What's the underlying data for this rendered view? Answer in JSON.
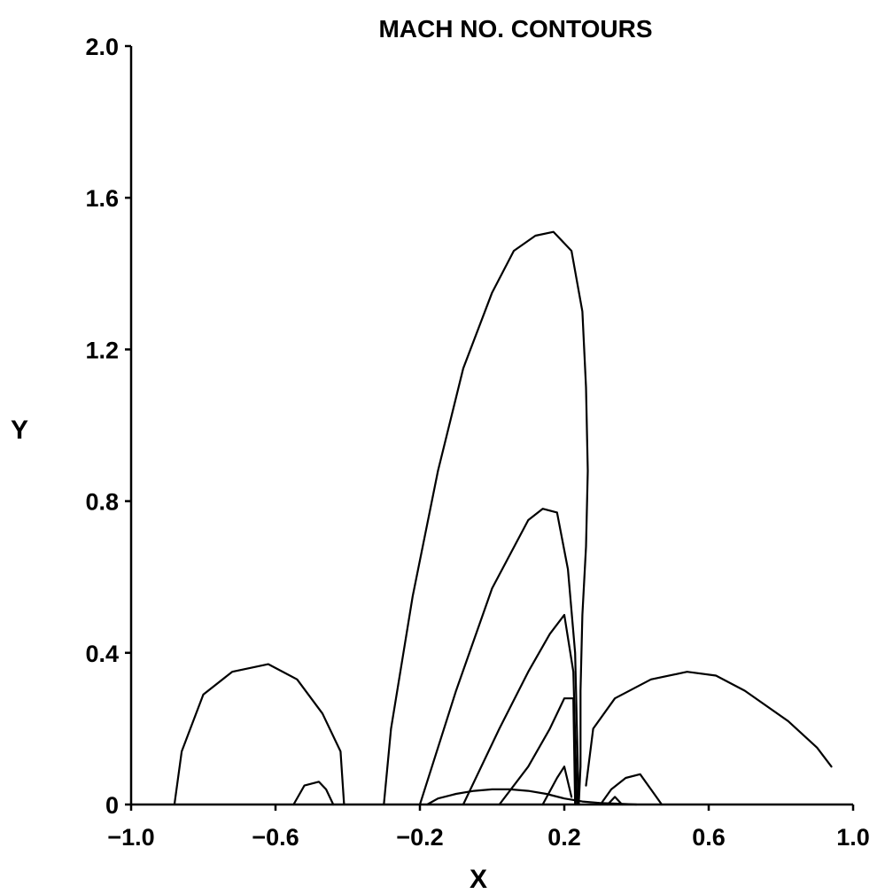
{
  "chart_data": {
    "type": "line",
    "title": "MACH NO. CONTOURS",
    "xlabel": "X",
    "ylabel": "Y",
    "xlim": [
      -1.0,
      1.0
    ],
    "ylim": [
      0,
      2.0
    ],
    "x_ticks": [
      -1.0,
      -0.6,
      -0.2,
      0.2,
      0.6,
      1.0
    ],
    "x_tick_labels": [
      "−1.0",
      "−0.6",
      "−0.2",
      "0.2",
      "0.6",
      "1.0"
    ],
    "y_ticks": [
      0,
      0.4,
      0.8,
      1.2,
      1.6,
      2.0
    ],
    "y_tick_labels": [
      "0",
      "0.4",
      "0.8",
      "1.2",
      "1.6",
      "2.0"
    ],
    "grid": false,
    "series": [
      {
        "x": [
          -0.18,
          -0.15,
          -0.1,
          -0.05,
          0.0,
          0.05,
          0.1,
          0.15,
          0.2,
          0.25,
          0.3,
          0.35,
          0.4
        ],
        "y": [
          0.0,
          0.016,
          0.028,
          0.036,
          0.04,
          0.04,
          0.036,
          0.028,
          0.016,
          0.008,
          0.004,
          0.002,
          0.0
        ]
      },
      {
        "x": [
          -0.88,
          -0.86,
          -0.8,
          -0.72,
          -0.62,
          -0.54,
          -0.47,
          -0.42,
          -0.41
        ],
        "y": [
          0.0,
          0.14,
          0.29,
          0.35,
          0.37,
          0.33,
          0.24,
          0.14,
          0.0
        ]
      },
      {
        "x": [
          -0.55,
          -0.52,
          -0.48,
          -0.46,
          -0.44
        ],
        "y": [
          0.0,
          0.05,
          0.06,
          0.04,
          0.0
        ]
      },
      {
        "x": [
          -0.3,
          -0.28,
          -0.22,
          -0.15,
          -0.08,
          0.0,
          0.06,
          0.12,
          0.17,
          0.22,
          0.25,
          0.26,
          0.265,
          0.26,
          0.25,
          0.245,
          0.245,
          0.24
        ],
        "y": [
          0.0,
          0.2,
          0.55,
          0.88,
          1.15,
          1.35,
          1.46,
          1.5,
          1.51,
          1.46,
          1.3,
          1.1,
          0.88,
          0.68,
          0.5,
          0.3,
          0.1,
          0.0
        ]
      },
      {
        "x": [
          -0.2,
          -0.1,
          0.0,
          0.1,
          0.14,
          0.18,
          0.21,
          0.23,
          0.24
        ],
        "y": [
          0.0,
          0.3,
          0.57,
          0.75,
          0.78,
          0.77,
          0.62,
          0.4,
          0.0
        ]
      },
      {
        "x": [
          -0.08,
          0.02,
          0.1,
          0.16,
          0.2,
          0.225,
          0.235
        ],
        "y": [
          0.0,
          0.2,
          0.35,
          0.45,
          0.5,
          0.35,
          0.0
        ]
      },
      {
        "x": [
          0.02,
          0.1,
          0.16,
          0.2,
          0.225,
          0.23
        ],
        "y": [
          0.0,
          0.1,
          0.2,
          0.28,
          0.28,
          0.0
        ]
      },
      {
        "x": [
          0.14,
          0.18,
          0.2,
          0.22
        ],
        "y": [
          0.0,
          0.07,
          0.1,
          0.02
        ]
      },
      {
        "x": [
          0.26,
          0.28,
          0.34,
          0.44,
          0.54,
          0.62,
          0.7,
          0.82,
          0.9,
          0.94
        ],
        "y": [
          0.05,
          0.2,
          0.28,
          0.33,
          0.35,
          0.34,
          0.3,
          0.22,
          0.15,
          0.1
        ]
      },
      {
        "x": [
          0.3,
          0.33,
          0.37,
          0.41,
          0.44,
          0.47
        ],
        "y": [
          0.0,
          0.04,
          0.07,
          0.08,
          0.04,
          0.0
        ]
      },
      {
        "x": [
          0.32,
          0.34,
          0.36
        ],
        "y": [
          0.0,
          0.02,
          0.0
        ]
      }
    ]
  }
}
